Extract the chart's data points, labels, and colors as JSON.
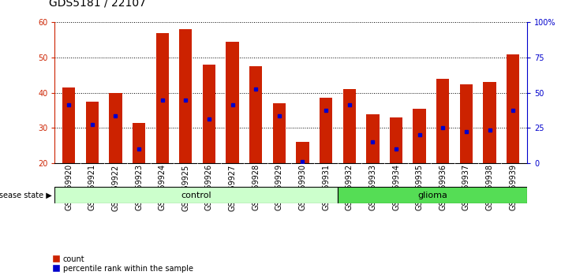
{
  "title": "GDS5181 / 22107",
  "samples": [
    "GSM769920",
    "GSM769921",
    "GSM769922",
    "GSM769923",
    "GSM769924",
    "GSM769925",
    "GSM769926",
    "GSM769927",
    "GSM769928",
    "GSM769929",
    "GSM769930",
    "GSM769931",
    "GSM769932",
    "GSM769933",
    "GSM769934",
    "GSM769935",
    "GSM769936",
    "GSM769937",
    "GSM769938",
    "GSM769939"
  ],
  "bar_heights": [
    41.5,
    37.5,
    40.0,
    31.5,
    57.0,
    58.0,
    48.0,
    54.5,
    47.5,
    37.0,
    26.0,
    38.5,
    41.0,
    34.0,
    33.0,
    35.5,
    44.0,
    42.5,
    43.0,
    51.0
  ],
  "percentile_ranks": [
    36.5,
    31.0,
    33.5,
    24.0,
    38.0,
    38.0,
    32.5,
    36.5,
    41.0,
    33.5,
    20.5,
    35.0,
    36.5,
    26.0,
    24.0,
    28.0,
    30.0,
    29.0,
    29.5,
    35.0
  ],
  "bar_color": "#cc2200",
  "marker_color": "#0000cc",
  "ymin": 20,
  "ymax": 60,
  "yticks": [
    20,
    30,
    40,
    50,
    60
  ],
  "right_yticks_labels": [
    "0",
    "25",
    "50",
    "75",
    "100%"
  ],
  "right_yticks_vals": [
    20,
    30,
    40,
    50,
    60
  ],
  "control_count": 12,
  "glioma_count": 8,
  "control_label": "control",
  "glioma_label": "glioma",
  "disease_state_label": "disease state",
  "legend_count_label": "count",
  "legend_percentile_label": "percentile rank within the sample",
  "bar_width": 0.55,
  "control_bg": "#ccffcc",
  "glioma_bg": "#55dd55",
  "title_fontsize": 10,
  "tick_fontsize": 7,
  "label_fontsize": 8
}
